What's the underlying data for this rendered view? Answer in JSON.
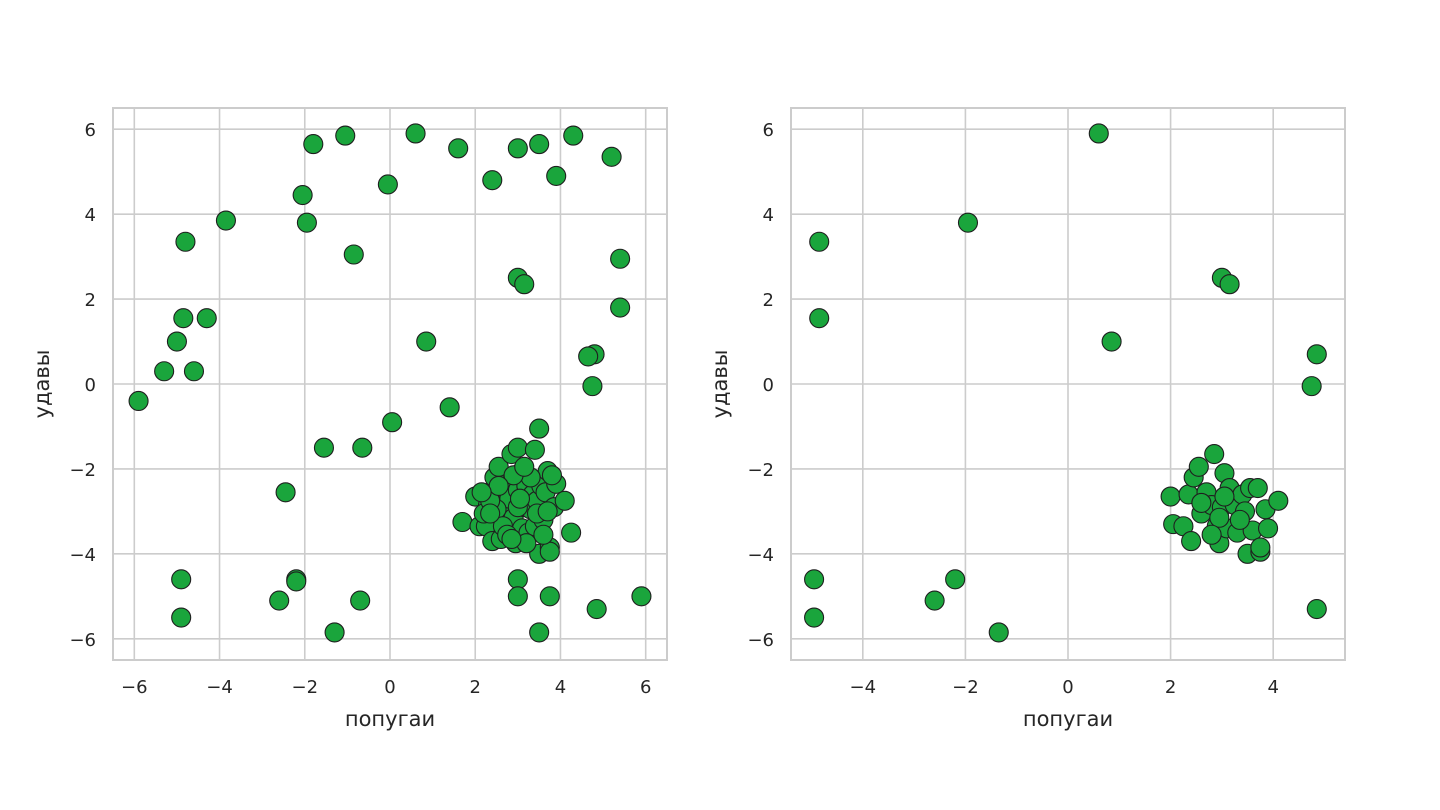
{
  "chart_data": [
    {
      "type": "scatter",
      "xlabel": "попугаи",
      "ylabel": "удавы",
      "xlim": [
        -6.5,
        6.5
      ],
      "ylim": [
        -6.5,
        6.5
      ],
      "xticks": [
        -6,
        -4,
        -2,
        0,
        2,
        4,
        6
      ],
      "xtick_labels": [
        "−6",
        "−4",
        "−2",
        "0",
        "2",
        "4",
        "6"
      ],
      "yticks": [
        -6,
        -4,
        -2,
        0,
        2,
        4,
        6
      ],
      "ytick_labels": [
        "−6",
        "−4",
        "−2",
        "0",
        "2",
        "4",
        "6"
      ],
      "grid": true,
      "color": "#1aa53c",
      "points": [
        [
          -5.9,
          -0.4
        ],
        [
          -5.3,
          0.3
        ],
        [
          -5.0,
          1.0
        ],
        [
          -4.85,
          1.55
        ],
        [
          -4.6,
          0.3
        ],
        [
          -4.8,
          3.35
        ],
        [
          -4.3,
          1.55
        ],
        [
          -3.85,
          3.85
        ],
        [
          -4.9,
          -4.6
        ],
        [
          -4.9,
          -5.5
        ],
        [
          -2.6,
          -5.1
        ],
        [
          -2.2,
          -4.6
        ],
        [
          -2.2,
          -4.65
        ],
        [
          -2.45,
          -2.55
        ],
        [
          -1.55,
          -1.5
        ],
        [
          -0.65,
          -1.5
        ],
        [
          -1.3,
          -5.85
        ],
        [
          -0.7,
          -5.1
        ],
        [
          0.05,
          -0.9
        ],
        [
          -1.8,
          5.65
        ],
        [
          -2.05,
          4.45
        ],
        [
          -1.95,
          3.8
        ],
        [
          -1.05,
          5.85
        ],
        [
          -0.85,
          3.05
        ],
        [
          -0.05,
          4.7
        ],
        [
          0.6,
          5.9
        ],
        [
          0.85,
          1.0
        ],
        [
          1.6,
          5.55
        ],
        [
          2.4,
          4.8
        ],
        [
          3.0,
          5.55
        ],
        [
          3.5,
          5.65
        ],
        [
          4.3,
          5.85
        ],
        [
          5.2,
          5.35
        ],
        [
          3.9,
          4.9
        ],
        [
          5.4,
          2.95
        ],
        [
          5.4,
          1.8
        ],
        [
          4.8,
          0.7
        ],
        [
          4.65,
          0.65
        ],
        [
          4.75,
          -0.05
        ],
        [
          3.0,
          2.5
        ],
        [
          3.15,
          2.35
        ],
        [
          1.4,
          -0.55
        ],
        [
          3.5,
          -1.05
        ],
        [
          3.0,
          -4.6
        ],
        [
          3.0,
          -5.0
        ],
        [
          3.75,
          -5.0
        ],
        [
          3.5,
          -5.85
        ],
        [
          4.85,
          -5.3
        ],
        [
          5.9,
          -5.0
        ],
        [
          4.25,
          -3.5
        ],
        [
          1.7,
          -3.25
        ],
        [
          2.0,
          -2.65
        ],
        [
          2.1,
          -3.35
        ],
        [
          2.25,
          -3.35
        ],
        [
          2.3,
          -2.85
        ],
        [
          2.35,
          -2.55
        ],
        [
          2.4,
          -3.7
        ],
        [
          2.45,
          -2.2
        ],
        [
          2.55,
          -1.95
        ],
        [
          2.6,
          -3.65
        ],
        [
          2.65,
          -2.45
        ],
        [
          2.7,
          -3.0
        ],
        [
          2.8,
          -2.7
        ],
        [
          2.85,
          -1.65
        ],
        [
          2.9,
          -3.15
        ],
        [
          2.95,
          -3.75
        ],
        [
          3.0,
          -2.5
        ],
        [
          3.0,
          -1.5
        ],
        [
          3.05,
          -2.1
        ],
        [
          3.1,
          -3.4
        ],
        [
          3.15,
          -2.9
        ],
        [
          3.2,
          -2.4
        ],
        [
          3.25,
          -3.5
        ],
        [
          3.3,
          -2.95
        ],
        [
          3.35,
          -2.6
        ],
        [
          3.4,
          -3.35
        ],
        [
          3.45,
          -2.75
        ],
        [
          3.5,
          -4.0
        ],
        [
          3.55,
          -2.4
        ],
        [
          3.6,
          -3.2
        ],
        [
          3.65,
          -2.55
        ],
        [
          3.7,
          -2.05
        ],
        [
          3.75,
          -3.85
        ],
        [
          3.75,
          -3.95
        ],
        [
          3.85,
          -2.9
        ],
        [
          3.9,
          -2.35
        ],
        [
          4.1,
          -2.75
        ],
        [
          3.0,
          -2.9
        ],
        [
          2.5,
          -2.95
        ],
        [
          2.2,
          -3.05
        ],
        [
          2.65,
          -3.35
        ],
        [
          3.2,
          -3.75
        ],
        [
          3.3,
          -2.2
        ],
        [
          2.75,
          -3.55
        ],
        [
          3.6,
          -3.55
        ],
        [
          3.05,
          -2.7
        ],
        [
          2.9,
          -2.15
        ],
        [
          3.45,
          -3.05
        ],
        [
          2.35,
          -2.75
        ],
        [
          3.15,
          -1.95
        ],
        [
          2.55,
          -2.4
        ],
        [
          2.85,
          -3.65
        ],
        [
          2.35,
          -3.05
        ],
        [
          3.7,
          -3.0
        ],
        [
          3.4,
          -1.55
        ],
        [
          3.8,
          -2.15
        ],
        [
          2.15,
          -2.55
        ]
      ]
    },
    {
      "type": "scatter",
      "xlabel": "попугаи",
      "ylabel": "удавы",
      "xlim": [
        -5.4,
        5.4
      ],
      "ylim": [
        -6.5,
        6.5
      ],
      "xticks": [
        -4,
        -2,
        0,
        2,
        4
      ],
      "xtick_labels": [
        "−4",
        "−2",
        "0",
        "2",
        "4"
      ],
      "yticks": [
        -6,
        -4,
        -2,
        0,
        2,
        4,
        6
      ],
      "ytick_labels": [
        "−6",
        "−4",
        "−2",
        "0",
        "2",
        "4",
        "6"
      ],
      "grid": true,
      "color": "#1aa53c",
      "points": [
        [
          -4.85,
          3.35
        ],
        [
          -4.85,
          1.55
        ],
        [
          -4.95,
          -4.6
        ],
        [
          -4.95,
          -5.5
        ],
        [
          -2.6,
          -5.1
        ],
        [
          -2.2,
          -4.6
        ],
        [
          -1.35,
          -5.85
        ],
        [
          -1.95,
          3.8
        ],
        [
          0.6,
          5.9
        ],
        [
          0.85,
          1.0
        ],
        [
          3.0,
          2.5
        ],
        [
          3.15,
          2.35
        ],
        [
          4.85,
          0.7
        ],
        [
          4.75,
          -0.05
        ],
        [
          4.85,
          -5.3
        ],
        [
          2.0,
          -2.65
        ],
        [
          2.05,
          -3.3
        ],
        [
          2.25,
          -3.35
        ],
        [
          2.35,
          -2.6
        ],
        [
          2.45,
          -2.2
        ],
        [
          2.4,
          -3.7
        ],
        [
          2.55,
          -1.95
        ],
        [
          2.6,
          -3.05
        ],
        [
          2.7,
          -2.55
        ],
        [
          2.8,
          -2.85
        ],
        [
          2.85,
          -1.65
        ],
        [
          2.9,
          -3.35
        ],
        [
          2.95,
          -3.75
        ],
        [
          3.0,
          -2.9
        ],
        [
          3.05,
          -2.1
        ],
        [
          3.1,
          -3.4
        ],
        [
          3.15,
          -2.45
        ],
        [
          3.25,
          -2.85
        ],
        [
          3.3,
          -3.5
        ],
        [
          3.4,
          -2.6
        ],
        [
          3.45,
          -3.0
        ],
        [
          3.5,
          -4.0
        ],
        [
          3.55,
          -2.45
        ],
        [
          3.6,
          -3.45
        ],
        [
          3.7,
          -2.45
        ],
        [
          3.75,
          -3.95
        ],
        [
          3.75,
          -3.85
        ],
        [
          3.85,
          -2.95
        ],
        [
          3.9,
          -3.4
        ],
        [
          4.1,
          -2.75
        ],
        [
          2.95,
          -3.15
        ],
        [
          2.6,
          -2.8
        ],
        [
          3.35,
          -3.2
        ],
        [
          3.05,
          -2.65
        ],
        [
          2.8,
          -3.55
        ]
      ]
    }
  ]
}
